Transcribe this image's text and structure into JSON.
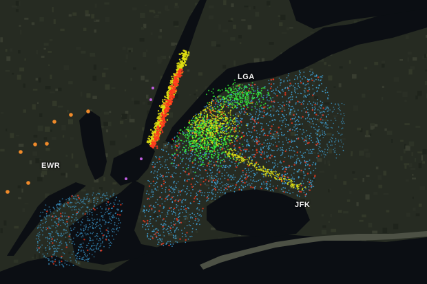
{
  "map": {
    "labels": {
      "lga": "LGA",
      "jfk": "JFK",
      "ewr": "EWR"
    },
    "colors": {
      "land": "#2a3026",
      "water": "#0b0e13",
      "density_high": "#e0e012",
      "density_mid": "#36f23a",
      "density_low": "#45b4f2",
      "hotspot": "#ff3a1e",
      "orange_points": "#f08a2a",
      "purple_points": "#c05ee0"
    },
    "icons": [
      "dot-layer"
    ]
  }
}
